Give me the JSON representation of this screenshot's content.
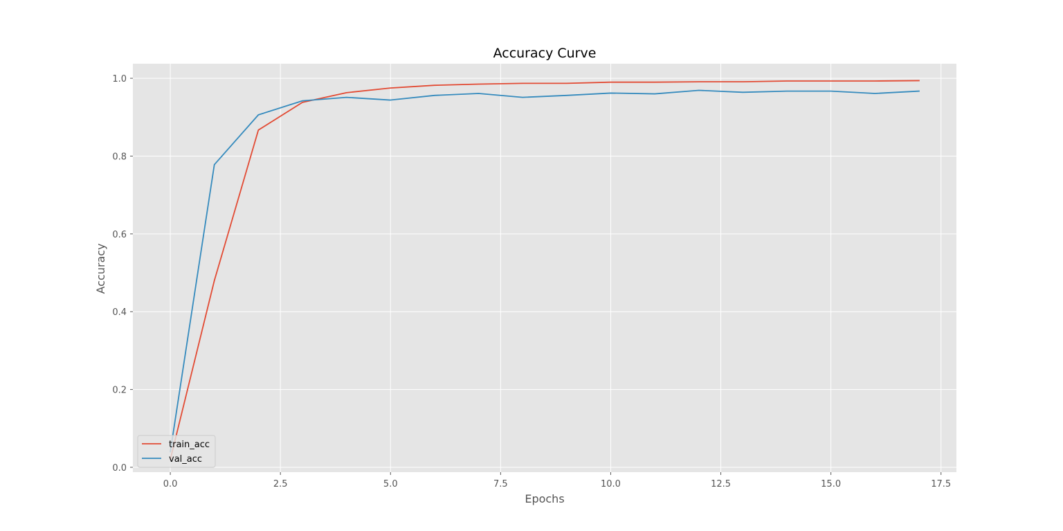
{
  "chart_data": {
    "type": "line",
    "title": "Accuracy Curve",
    "xlabel": "Epochs",
    "ylabel": "Accuracy",
    "xlim": [
      -0.85,
      17.85
    ],
    "ylim": [
      -0.0125,
      1.0375
    ],
    "xticks": [
      0,
      2.5,
      5,
      7.5,
      10,
      12.5,
      15,
      17.5
    ],
    "xtick_labels": [
      "0.0",
      "2.5",
      "5.0",
      "7.5",
      "10.0",
      "12.5",
      "15.0",
      "17.5"
    ],
    "yticks": [
      0,
      0.2,
      0.4,
      0.6,
      0.8,
      1.0
    ],
    "ytick_labels": [
      "0.0",
      "0.2",
      "0.4",
      "0.6",
      "0.8",
      "1.0"
    ],
    "grid": true,
    "legend_position": "lower-left",
    "background_color": "#e5e5e5",
    "grid_color": "#ffffff",
    "x": [
      0,
      1,
      2,
      3,
      4,
      5,
      6,
      7,
      8,
      9,
      10,
      11,
      12,
      13,
      14,
      15,
      16,
      17
    ],
    "series": [
      {
        "name": "train_acc",
        "color": "#e24a33",
        "values": [
          0.02,
          0.48,
          0.867,
          0.938,
          0.963,
          0.975,
          0.982,
          0.985,
          0.987,
          0.987,
          0.99,
          0.99,
          0.991,
          0.991,
          0.993,
          0.993,
          0.993,
          0.994
        ]
      },
      {
        "name": "val_acc",
        "color": "#348abd",
        "values": [
          0.04,
          0.778,
          0.906,
          0.942,
          0.951,
          0.944,
          0.956,
          0.961,
          0.951,
          0.956,
          0.962,
          0.96,
          0.969,
          0.964,
          0.967,
          0.967,
          0.961,
          0.967
        ]
      }
    ]
  }
}
